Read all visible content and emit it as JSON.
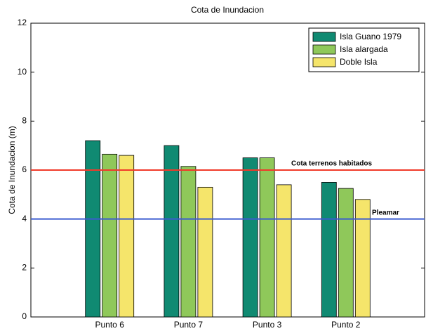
{
  "chart_data": {
    "type": "bar",
    "title": "Cota de Inundacion",
    "ylabel": "Cota de Inundacion (m)",
    "categories": [
      "Punto 6",
      "Punto 7",
      "Punto 3",
      "Punto 2"
    ],
    "series": [
      {
        "name": "Isla Guano 1979",
        "color": "#108a72",
        "values": [
          7.2,
          7.0,
          6.5,
          5.5
        ]
      },
      {
        "name": "Isla alargada",
        "color": "#8fc85a",
        "values": [
          6.65,
          6.15,
          6.5,
          5.25
        ]
      },
      {
        "name": "Doble Isla",
        "color": "#f5e56b",
        "values": [
          6.6,
          5.3,
          5.4,
          4.8
        ]
      }
    ],
    "reference_lines": [
      {
        "label": "Cota terrenos habitados",
        "value": 6,
        "color": "#f03a2a"
      },
      {
        "label": "Pleamar",
        "value": 4,
        "color": "#3a5bd0"
      }
    ],
    "ylim": [
      0,
      12
    ],
    "yticks": [
      0,
      2,
      4,
      6,
      8,
      10,
      12
    ],
    "legend": "upper right",
    "grid": false
  }
}
